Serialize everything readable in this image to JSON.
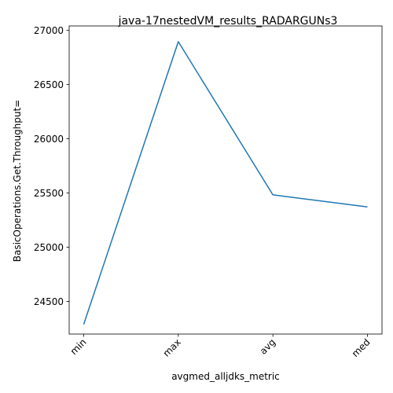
{
  "chart_data": {
    "type": "line",
    "title": "java-17nestedVM_results_RADARGUNs3",
    "xlabel": "avgmed_alljdks_metric",
    "ylabel": "BasicOperations.Get.Throughput=",
    "categories": [
      "min",
      "max",
      "avg",
      "med"
    ],
    "series": [
      {
        "values": [
          24290,
          26895,
          25483,
          25372
        ]
      }
    ],
    "ylim": [
      24200,
      27040
    ],
    "yticks": [
      24500,
      25000,
      25500,
      26000,
      26500,
      27000
    ],
    "grid": false,
    "line_color": "#1f77b4"
  }
}
